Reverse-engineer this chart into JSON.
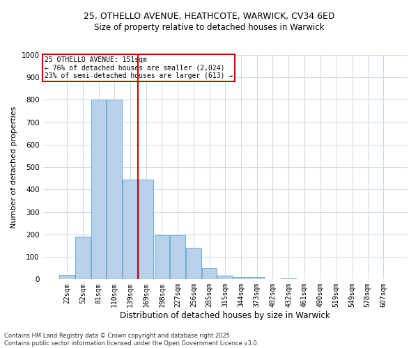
{
  "title_line1": "25, OTHELLO AVENUE, HEATHCOTE, WARWICK, CV34 6ED",
  "title_line2": "Size of property relative to detached houses in Warwick",
  "xlabel": "Distribution of detached houses by size in Warwick",
  "ylabel": "Number of detached properties",
  "annotation_line1": "25 OTHELLO AVENUE: 151sqm",
  "annotation_line2": "← 76% of detached houses are smaller (2,024)",
  "annotation_line3": "23% of semi-detached houses are larger (613) →",
  "footer_line1": "Contains HM Land Registry data © Crown copyright and database right 2025.",
  "footer_line2": "Contains public sector information licensed under the Open Government Licence v3.0.",
  "bar_color": "#b8d0ea",
  "bar_edge_color": "#6aaed6",
  "redline_color": "#cc0000",
  "annotation_box_color": "#cc0000",
  "background_color": "#ffffff",
  "grid_color": "#c8d8e8",
  "categories": [
    "22sqm",
    "52sqm",
    "81sqm",
    "110sqm",
    "139sqm",
    "169sqm",
    "198sqm",
    "227sqm",
    "256sqm",
    "285sqm",
    "315sqm",
    "344sqm",
    "373sqm",
    "402sqm",
    "432sqm",
    "461sqm",
    "490sqm",
    "519sqm",
    "549sqm",
    "578sqm",
    "607sqm"
  ],
  "values": [
    20,
    190,
    800,
    800,
    445,
    445,
    195,
    195,
    140,
    50,
    15,
    10,
    10,
    0,
    5,
    0,
    0,
    0,
    0,
    0,
    0
  ],
  "ylim": [
    0,
    1000
  ],
  "yticks": [
    0,
    100,
    200,
    300,
    400,
    500,
    600,
    700,
    800,
    900,
    1000
  ],
  "redline_x": 4.5,
  "title1_fontsize": 9,
  "title2_fontsize": 8.5,
  "xlabel_fontsize": 8.5,
  "ylabel_fontsize": 8,
  "tick_fontsize": 7,
  "annotation_fontsize": 7,
  "footer_fontsize": 6
}
